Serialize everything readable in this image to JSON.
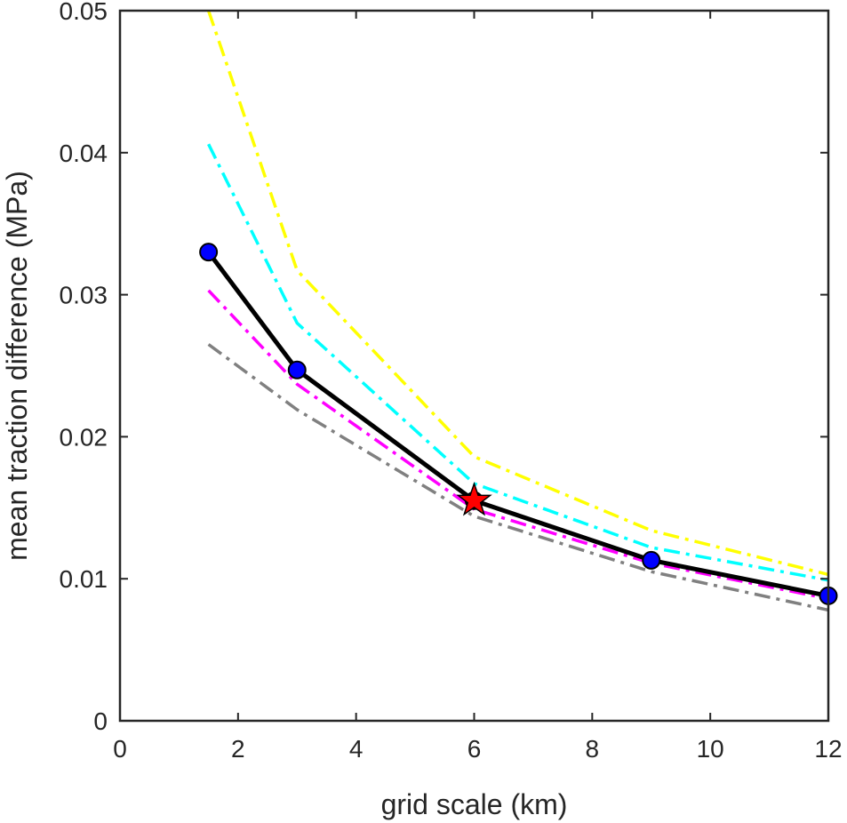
{
  "chart_data": {
    "type": "line",
    "xlabel": "grid scale (km)",
    "ylabel": "mean traction difference (MPa)",
    "xlim": [
      0,
      12
    ],
    "ylim": [
      0,
      0.05
    ],
    "xticks": [
      0,
      2,
      4,
      6,
      8,
      10,
      12
    ],
    "xtick_labels": [
      "0",
      "2",
      "4",
      "6",
      "8",
      "10",
      "12"
    ],
    "yticks": [
      0,
      0.01,
      0.02,
      0.03,
      0.04,
      0.05
    ],
    "ytick_labels": [
      "0",
      "0.01",
      "0.02",
      "0.03",
      "0.04",
      "0.05"
    ],
    "grid": false,
    "box": true,
    "series": [
      {
        "x": [
          1.5,
          3,
          6,
          9,
          12
        ],
        "y": [
          0.05,
          0.0317,
          0.0186,
          0.0134,
          0.0103
        ],
        "color": "#ffff00",
        "style": "dash-dot",
        "marker": "none"
      },
      {
        "x": [
          1.5,
          3,
          6,
          9,
          12
        ],
        "y": [
          0.0406,
          0.028,
          0.0167,
          0.0122,
          0.0099
        ],
        "color": "#00ffff",
        "style": "dash-dot",
        "marker": "none"
      },
      {
        "x": [
          1.5,
          3,
          6,
          9,
          12
        ],
        "y": [
          0.0303,
          0.0237,
          0.0149,
          0.0111,
          0.0086
        ],
        "color": "#ff00ff",
        "style": "dash-dot",
        "marker": "none"
      },
      {
        "x": [
          1.5,
          3,
          6,
          9,
          12
        ],
        "y": [
          0.0265,
          0.0219,
          0.0144,
          0.0105,
          0.0078
        ],
        "color": "#808080",
        "style": "dash-dot",
        "marker": "none"
      },
      {
        "x": [
          1.5,
          3,
          6,
          9,
          12
        ],
        "y": [
          0.033,
          0.0247,
          0.0155,
          0.0113,
          0.0088
        ],
        "color": "#000000",
        "style": "solid",
        "marker": "circle",
        "marker_color": "#0000ff"
      }
    ],
    "highlight": {
      "x": 6,
      "y": 0.0155,
      "marker": "star",
      "color": "#ff0000"
    }
  }
}
